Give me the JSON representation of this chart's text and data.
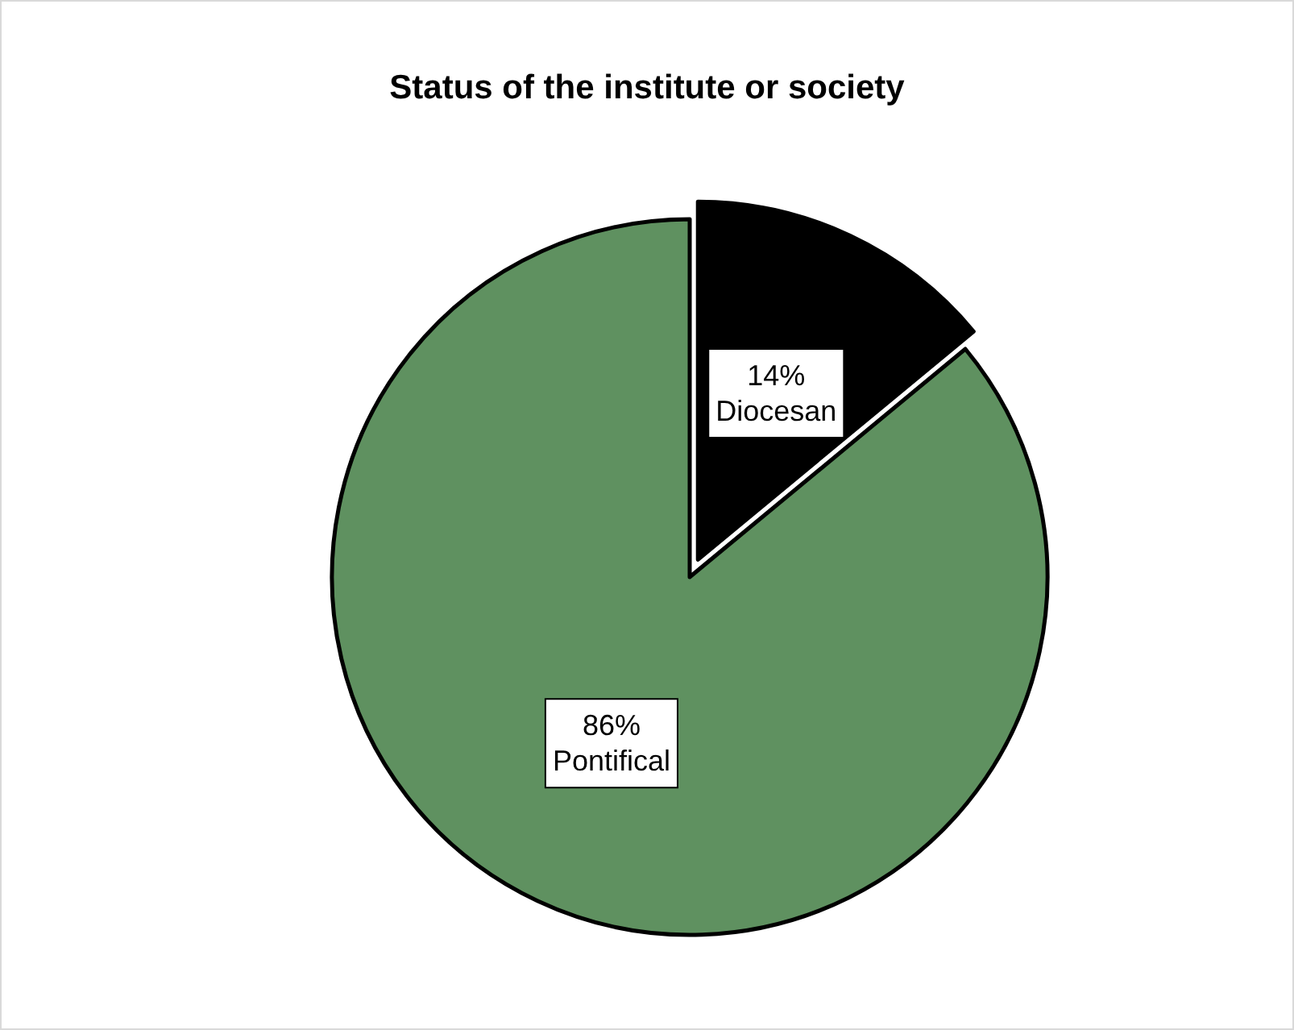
{
  "chart_data": {
    "type": "pie",
    "title": "Status of the institute or society",
    "categories": [
      "Diocesan",
      "Pontifical"
    ],
    "values": [
      14,
      86
    ],
    "colors": [
      "#000000",
      "#5f9160"
    ],
    "value_labels": [
      "14%",
      "86%"
    ]
  }
}
